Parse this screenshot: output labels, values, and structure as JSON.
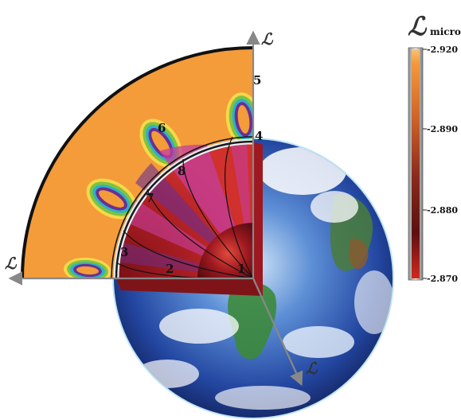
{
  "axis_symbol": "ℒ",
  "legend": {
    "symbol": "ℒ",
    "subscript": "micro",
    "ticks": [
      "-2.920",
      "-2.890",
      "-2.880",
      "-2.870"
    ],
    "colors": [
      "#f49a3a",
      "#b8311f",
      "#6b1010",
      "#d2281c"
    ]
  },
  "region_labels": [
    "1",
    "2",
    "3",
    "4",
    "5",
    "6",
    "7",
    "8"
  ],
  "colors": {
    "outer_region": "#f49b3a",
    "inner_red_dark": "#5e0d12",
    "inner_red": "#c1262b",
    "ring_magenta": "#c43f9e",
    "ring_purple": "#6b2f92",
    "ring_cyan": "#2fb0c8",
    "ring_green": "#7fc241",
    "ring_yellow": "#f7d84a",
    "earth_ocean": "#2a5bb5",
    "earth_land": "#3c8a3b"
  }
}
